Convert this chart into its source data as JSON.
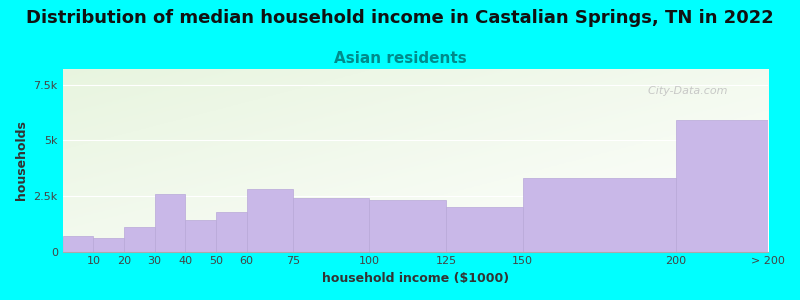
{
  "title": "Distribution of median household income in Castalian Springs, TN in 2022",
  "subtitle": "Asian residents",
  "xlabel": "household income ($1000)",
  "ylabel": "households",
  "background_color": "#00FFFF",
  "bar_color": "#c9b8e8",
  "bar_edge_color": "#b8a8d8",
  "categories": [
    "10",
    "20",
    "30",
    "40",
    "50",
    "60",
    "75",
    "100",
    "125",
    "150",
    "200",
    "> 200"
  ],
  "bin_edges": [
    0,
    10,
    20,
    30,
    40,
    50,
    60,
    75,
    100,
    125,
    150,
    200,
    230
  ],
  "values": [
    700,
    600,
    1100,
    2600,
    1400,
    1800,
    2800,
    2400,
    2300,
    2000,
    3300,
    5900
  ],
  "ylim": [
    0,
    8200
  ],
  "yticks": [
    0,
    2500,
    5000,
    7500
  ],
  "ytick_labels": [
    "0",
    "2.5k",
    "5k",
    "7.5k"
  ],
  "title_fontsize": 13,
  "subtitle_fontsize": 11,
  "subtitle_color": "#008B8B",
  "axis_label_fontsize": 9,
  "tick_fontsize": 8,
  "watermark": "  City-Data.com",
  "watermark_color": "#c0c0c0",
  "title_color": "#111111"
}
